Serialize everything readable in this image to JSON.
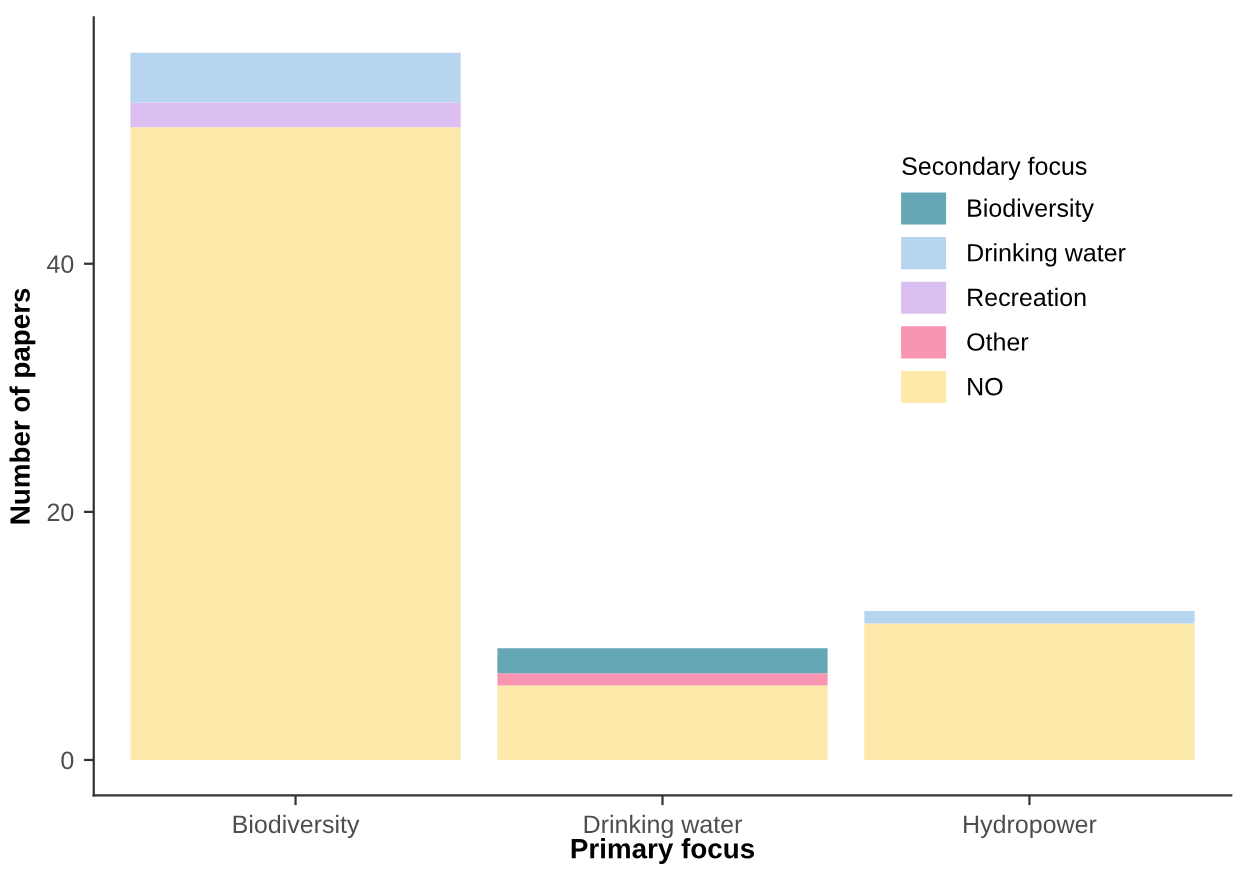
{
  "chart_data": {
    "type": "bar",
    "stacked": true,
    "xlabel": "Primary focus",
    "ylabel": "Number of papers",
    "legend_title": "Secondary focus",
    "legend": "right",
    "grid": false,
    "categories": [
      "Biodiversity",
      "Drinking water",
      "Hydropower"
    ],
    "ylim": [
      -2.85,
      59.85
    ],
    "yticks": [
      0,
      20,
      40
    ],
    "series": [
      {
        "name": "NO",
        "color": "#fde9a9",
        "values": [
          51,
          6,
          11
        ]
      },
      {
        "name": "Other",
        "color": "#f895b2",
        "values": [
          0,
          1,
          0
        ]
      },
      {
        "name": "Recreation",
        "color": "#dcbff2",
        "values": [
          2,
          0,
          0
        ]
      },
      {
        "name": "Drinking water",
        "color": "#b8d5ef",
        "values": [
          4,
          0,
          1
        ]
      },
      {
        "name": "Biodiversity",
        "color": "#65a7b5",
        "values": [
          0,
          2,
          0
        ]
      }
    ]
  }
}
